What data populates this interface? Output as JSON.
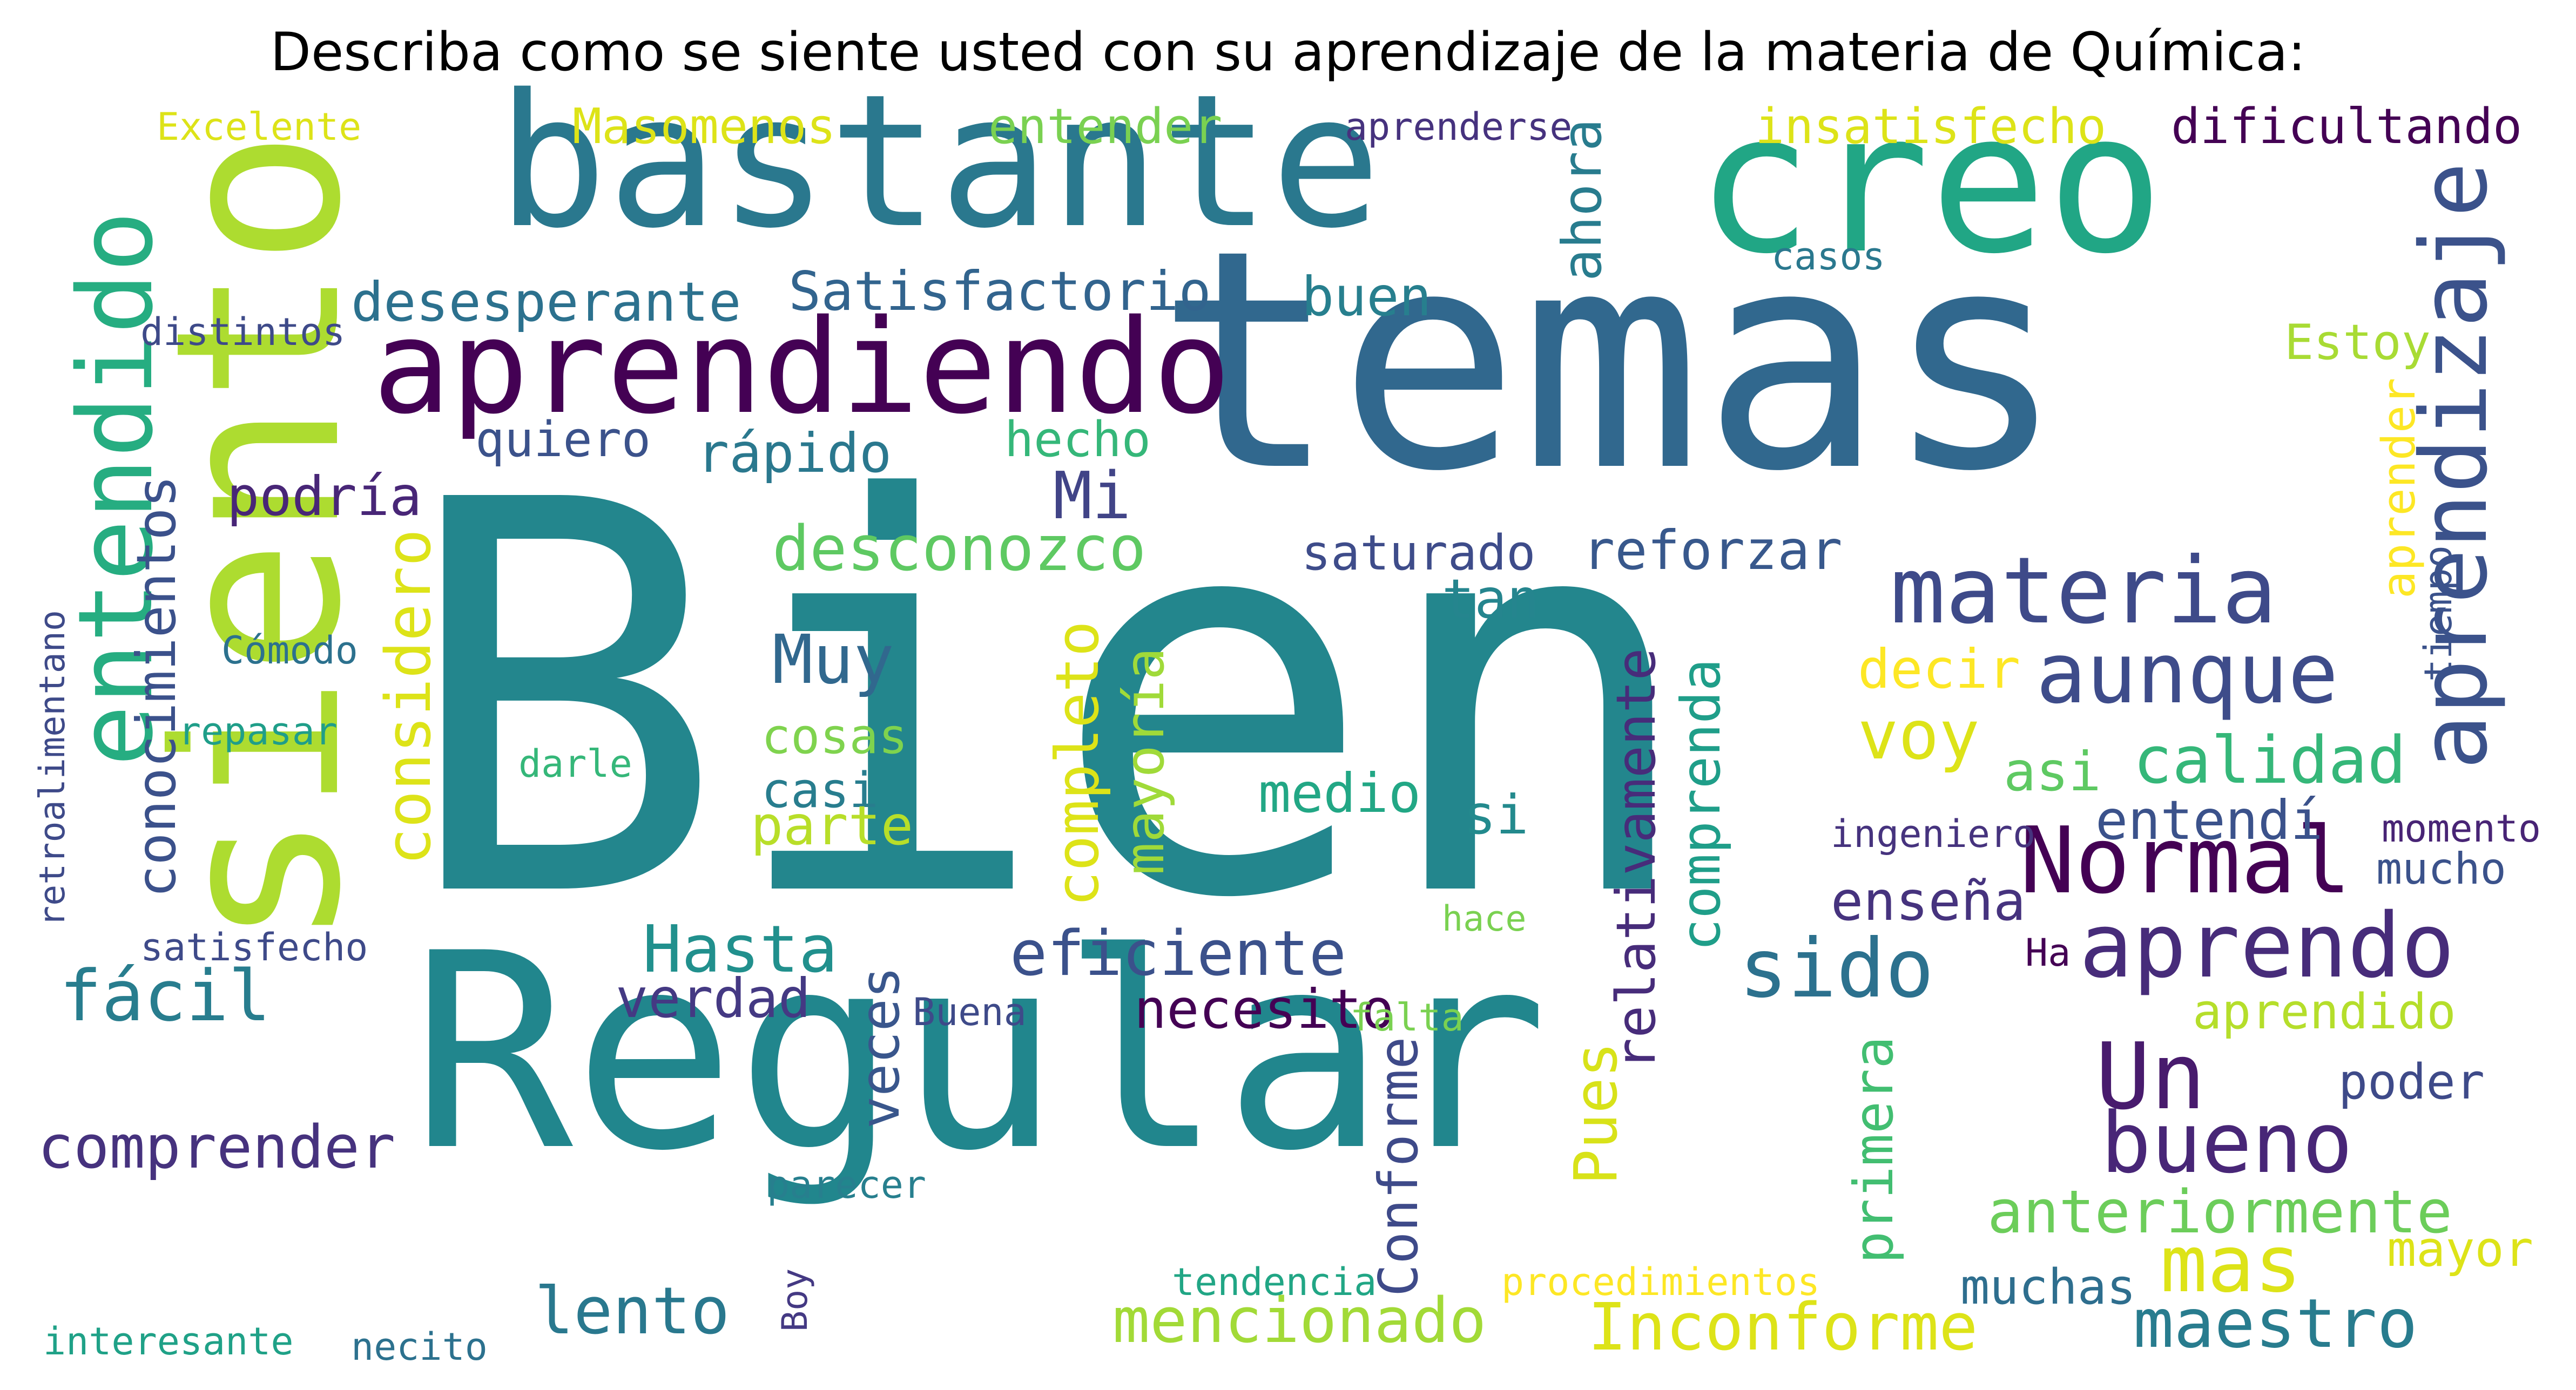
{
  "title": "Describa como se siente usted con su aprendizaje de la materia de Química:",
  "words": [
    {
      "text": "Bien",
      "color": "#23868d"
    },
    {
      "text": "temas",
      "color": "#31688e"
    },
    {
      "text": "Regular",
      "color": "#21868d"
    },
    {
      "text": "siento",
      "color": "#addc30"
    },
    {
      "text": "creo",
      "color": "#21a685"
    },
    {
      "text": "bastante",
      "color": "#2a788e"
    },
    {
      "text": "aprendiendo",
      "color": "#440154"
    },
    {
      "text": "entendido",
      "color": "#26ad81"
    },
    {
      "text": "materia",
      "color": "#3e4a89"
    },
    {
      "text": "aprendizaje",
      "color": "#3b528b"
    },
    {
      "text": "aunque",
      "color": "#3e4c8a"
    },
    {
      "text": "Normal",
      "color": "#440154"
    },
    {
      "text": "aprendo",
      "color": "#472c7a"
    },
    {
      "text": "sido",
      "color": "#2c718e"
    },
    {
      "text": "Un",
      "color": "#481b6d"
    },
    {
      "text": "bueno",
      "color": "#482677"
    },
    {
      "text": "mas",
      "color": "#dde318"
    },
    {
      "text": "maestro",
      "color": "#287c8e"
    },
    {
      "text": "Inconforme",
      "color": "#dde318"
    },
    {
      "text": "mencionado",
      "color": "#a2da37"
    },
    {
      "text": "lento",
      "color": "#29788e"
    },
    {
      "text": "comprender",
      "color": "#46327e"
    },
    {
      "text": "fácil",
      "color": "#287d8e"
    },
    {
      "text": "considero",
      "color": "#dde318"
    },
    {
      "text": "conocimientos",
      "color": "#3b518b"
    },
    {
      "text": "desconozco",
      "color": "#5ec962"
    },
    {
      "text": "Muy",
      "color": "#31688e"
    },
    {
      "text": "Mi",
      "color": "#414487"
    },
    {
      "text": "eficiente",
      "color": "#3b518b"
    },
    {
      "text": "Hasta",
      "color": "#21908d"
    },
    {
      "text": "verdad",
      "color": "#443983"
    },
    {
      "text": "veces",
      "color": "#39568c"
    },
    {
      "text": "necesito",
      "color": "#440154"
    },
    {
      "text": "Pues",
      "color": "#d8e219"
    },
    {
      "text": "Conforme",
      "color": "#3e4a89"
    },
    {
      "text": "primera",
      "color": "#42be71"
    },
    {
      "text": "relativamente",
      "color": "#472c7a"
    },
    {
      "text": "comprenda",
      "color": "#1f9e89"
    },
    {
      "text": "completo",
      "color": "#dde318"
    },
    {
      "text": "mayoría",
      "color": "#a0da39"
    },
    {
      "text": "desesperante",
      "color": "#2c718e"
    },
    {
      "text": "Satisfactorio",
      "color": "#32648e"
    },
    {
      "text": "buen",
      "color": "#277f8e"
    },
    {
      "text": "ahora",
      "color": "#287c8e"
    },
    {
      "text": "quiero",
      "color": "#3b528b"
    },
    {
      "text": "rápido",
      "color": "#2a788e"
    },
    {
      "text": "hecho",
      "color": "#35b779"
    },
    {
      "text": "podría",
      "color": "#482677"
    },
    {
      "text": "saturado",
      "color": "#3e4c8a"
    },
    {
      "text": "reforzar",
      "color": "#38588c"
    },
    {
      "text": "tan",
      "color": "#25858e"
    },
    {
      "text": "voy",
      "color": "#dde318"
    },
    {
      "text": "calidad",
      "color": "#35b779"
    },
    {
      "text": "asi",
      "color": "#5ec962"
    },
    {
      "text": "entendí",
      "color": "#3b528b"
    },
    {
      "text": "enseña",
      "color": "#46337e"
    },
    {
      "text": "decir",
      "color": "#fde725"
    },
    {
      "text": "medio",
      "color": "#22a785"
    },
    {
      "text": "si",
      "color": "#238a8d"
    },
    {
      "text": "cosas",
      "color": "#7fd34e"
    },
    {
      "text": "casi",
      "color": "#287d8e"
    },
    {
      "text": "parte",
      "color": "#b8de29"
    },
    {
      "text": "Masomenos",
      "color": "#dde318"
    },
    {
      "text": "entender",
      "color": "#7ad151"
    },
    {
      "text": "insatisfecho",
      "color": "#dde318"
    },
    {
      "text": "dificultando",
      "color": "#440154"
    },
    {
      "text": "Estoy",
      "color": "#a8db34"
    },
    {
      "text": "aprender",
      "color": "#fde725"
    },
    {
      "text": "aprendido",
      "color": "#b5de2b"
    },
    {
      "text": "poder",
      "color": "#3e4a89"
    },
    {
      "text": "anteriormente",
      "color": "#6ccd5a"
    },
    {
      "text": "mayor",
      "color": "#dde318"
    },
    {
      "text": "muchas",
      "color": "#2e6e8e"
    },
    {
      "text": "mucho",
      "color": "#3b528b"
    },
    {
      "text": "tiempo",
      "color": "#3b528b"
    },
    {
      "text": "momento",
      "color": "#482475"
    },
    {
      "text": "ingeniero",
      "color": "#46337e"
    },
    {
      "text": "Ha",
      "color": "#440154"
    },
    {
      "text": "casos",
      "color": "#2a788e"
    },
    {
      "text": "aprenderse",
      "color": "#46327e"
    },
    {
      "text": "Excelente",
      "color": "#dde318"
    },
    {
      "text": "distintos",
      "color": "#3e4a89"
    },
    {
      "text": "Cómodo",
      "color": "#2c718e"
    },
    {
      "text": "repasar",
      "color": "#1f9e89"
    },
    {
      "text": "darle",
      "color": "#35b779"
    },
    {
      "text": "retroalimentano",
      "color": "#3e4a89"
    },
    {
      "text": "satisfecho",
      "color": "#3e4a89"
    },
    {
      "text": "interesante",
      "color": "#1fa187"
    },
    {
      "text": "necito",
      "color": "#2c718e"
    },
    {
      "text": "parecer",
      "color": "#277f8e"
    },
    {
      "text": "Buena",
      "color": "#3e4a89"
    },
    {
      "text": "falta",
      "color": "#7ad151"
    },
    {
      "text": "hace",
      "color": "#7ad151"
    },
    {
      "text": "tendencia",
      "color": "#21a685"
    },
    {
      "text": "Boy",
      "color": "#443983"
    },
    {
      "text": "procedimientos",
      "color": "#fde725"
    }
  ]
}
